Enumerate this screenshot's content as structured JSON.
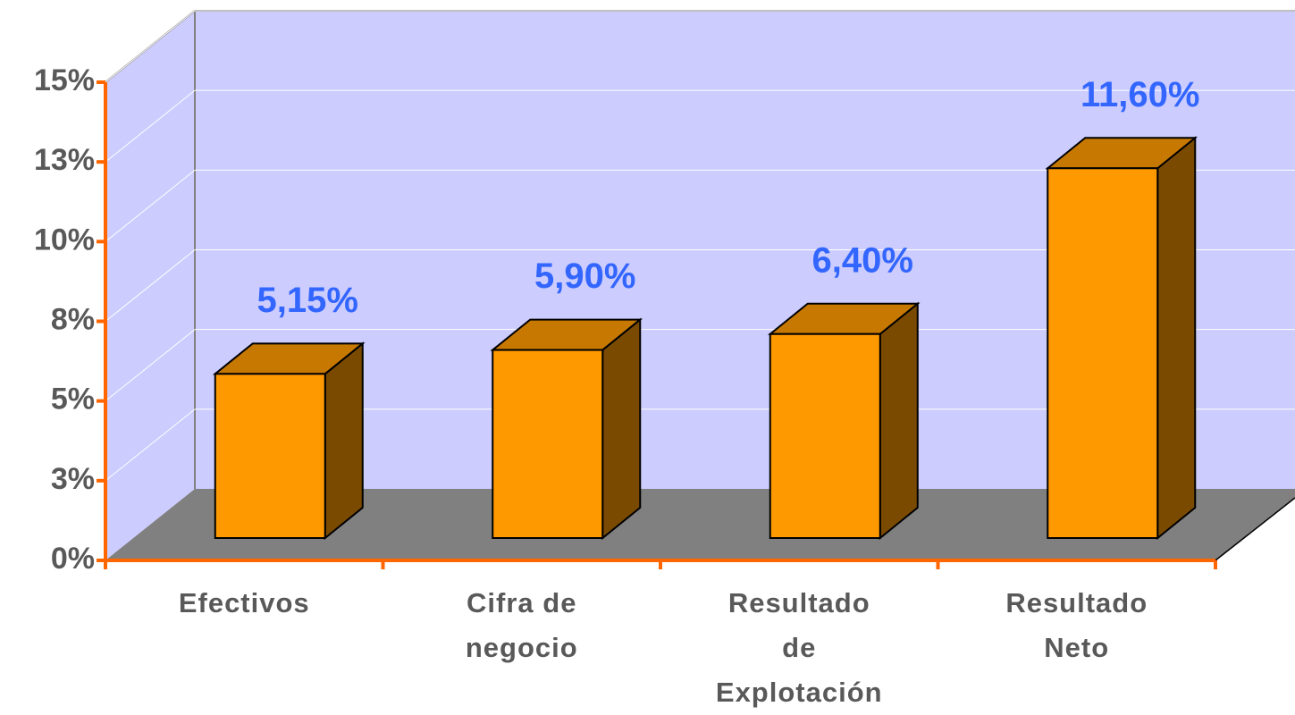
{
  "chart_data": {
    "type": "bar3d",
    "categories": [
      "Efectivos",
      "Cifra de negocio",
      "Resultado de Explotación",
      "Resultado Neto"
    ],
    "values": [
      5.15,
      5.9,
      6.4,
      11.6
    ],
    "value_labels": [
      "5,15%",
      "5,90%",
      "6,40%",
      "11,60%"
    ],
    "color": "#ff9900",
    "ylim": [
      0,
      15
    ],
    "yticks": [
      {
        "value": 0,
        "label": "0%"
      },
      {
        "value": 2.5,
        "label": "3%"
      },
      {
        "value": 5,
        "label": "5%"
      },
      {
        "value": 7.5,
        "label": "8%"
      },
      {
        "value": 10,
        "label": "10%"
      },
      {
        "value": 12.5,
        "label": "13%"
      },
      {
        "value": 15,
        "label": "15%"
      }
    ],
    "grid": true
  }
}
